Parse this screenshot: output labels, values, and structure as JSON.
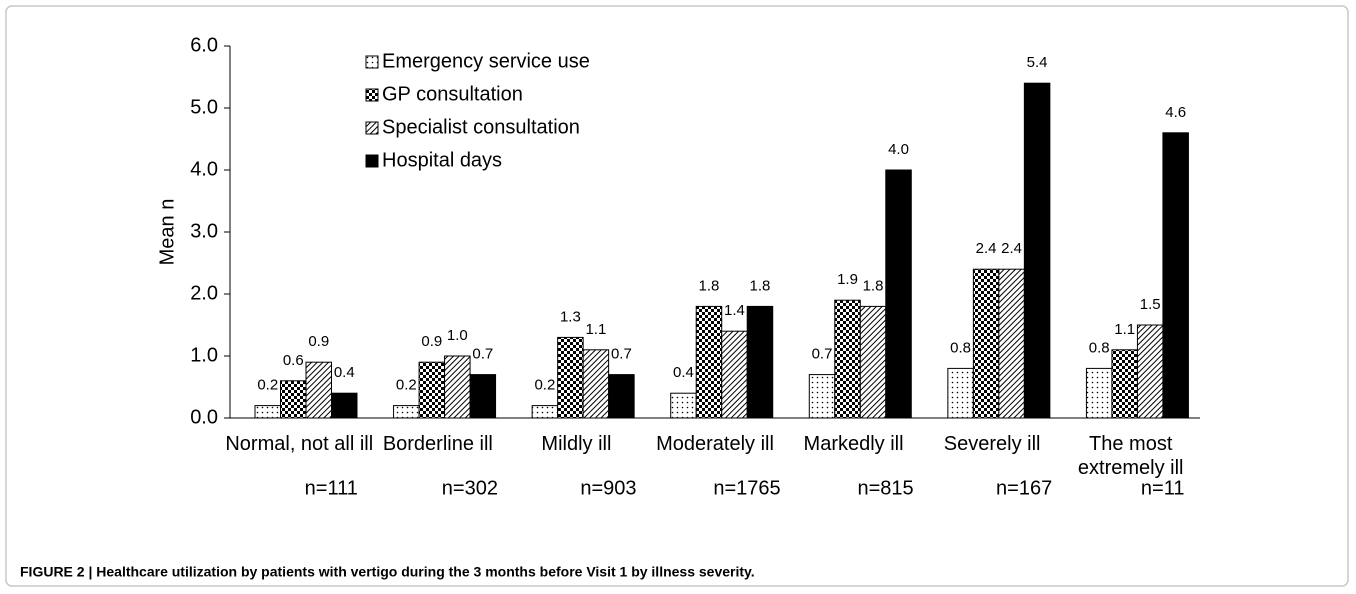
{
  "chart_data": {
    "type": "bar",
    "caption": "FIGURE 2 | Healthcare utilization by patients with vertigo during the 3 months before Visit 1 by illness severity.",
    "ylabel": "Mean n",
    "categories": [
      "Normal, not all ill",
      "Borderline ill",
      "Mildly ill",
      "Moderately ill",
      "Markedly ill",
      "Severely ill",
      "The most extremely ill"
    ],
    "sample_sizes": [
      "n=111",
      "n=302",
      "n=903",
      "n=1765",
      "n=815",
      "n=167",
      "n=11"
    ],
    "series": [
      {
        "name": "Emergency service use",
        "color": "#ffffff",
        "pattern": "dots",
        "values": [
          0.2,
          0.2,
          0.2,
          0.4,
          0.7,
          0.8,
          0.8
        ],
        "value_labels": [
          "0.2",
          "0.2",
          "0.2",
          "0.4",
          "0.7",
          "0.8",
          "0.8"
        ]
      },
      {
        "name": "GP consultation",
        "color": "#000000",
        "pattern": "checker",
        "values": [
          0.6,
          0.9,
          1.3,
          1.8,
          1.9,
          2.4,
          1.1
        ],
        "value_labels": [
          "0.6",
          "0.9",
          "1.3",
          "1.8",
          "1.9",
          "2.4",
          "1.1"
        ]
      },
      {
        "name": "Specialist consultation",
        "color": "#000000",
        "pattern": "hatch",
        "values": [
          0.9,
          1.0,
          1.1,
          1.4,
          1.8,
          2.4,
          1.5
        ],
        "value_labels": [
          "0.9",
          "1.0",
          "1.1",
          "1.4",
          "1.8",
          "2.4",
          "1.5"
        ]
      },
      {
        "name": "Hospital days",
        "color": "#000000",
        "pattern": "solid",
        "values": [
          0.4,
          0.7,
          0.7,
          1.8,
          4.0,
          5.4,
          4.6
        ],
        "value_labels": [
          "0.4",
          "0.7",
          "0.7",
          "1.8",
          "4.0",
          "5.4",
          "4.6"
        ]
      }
    ],
    "ylim": [
      0,
      6
    ],
    "yticks": [
      {
        "value": 0,
        "label": "0.0"
      },
      {
        "value": 1,
        "label": "1.0"
      },
      {
        "value": 2,
        "label": "2.0"
      },
      {
        "value": 3,
        "label": "3.0"
      },
      {
        "value": 4,
        "label": "4.0"
      },
      {
        "value": 5,
        "label": "5.0"
      },
      {
        "value": 6,
        "label": "6.0"
      }
    ],
    "grid": false,
    "legend": "top-left"
  }
}
